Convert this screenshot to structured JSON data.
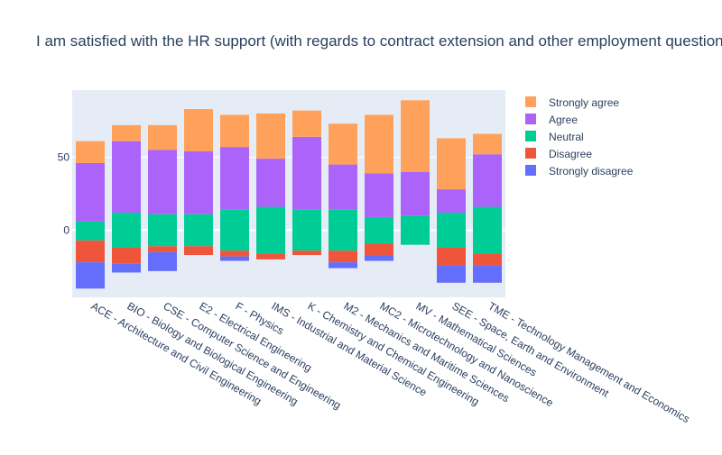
{
  "colors": {
    "plot_bg": "#E5ECF6",
    "grid": "#ffffff",
    "text": "#2a3f5f",
    "strongly_agree": "#FFA15A",
    "agree": "#AB63FA",
    "neutral": "#00CC96",
    "disagree": "#EF553B",
    "strongly_disagree": "#636EFA"
  },
  "chart_data": {
    "type": "bar",
    "title": "I am satisfied with the HR support (with regards to contract extension and other employment questions)",
    "xlabel": "",
    "ylabel": "",
    "barmode": "relative (diverging stacked)",
    "ylim": [
      -46,
      96
    ],
    "yticks": [
      0,
      50
    ],
    "legend_position": "top-right, outside plot",
    "categories": [
      "ACE - Architecture and Civil Engineering",
      "BIO - Biology and Biological Engineering",
      "CSE - Computer Science and Engineering",
      "E2 - Electrical Engineering",
      "F - Physics",
      "IMS - Industrial and Material Science",
      "K - Chemistry and Chemical Engineering",
      "M2 - Mechanics and Maritime Sciences",
      "MC2 - Microtechnology and Nanoscience",
      "MV - Mathematical Sciences",
      "SEE - Space, Earth and Environment",
      "TME - Technology Management and Economics"
    ],
    "series": [
      {
        "name": "Strongly agree",
        "key": "strongly_agree",
        "side": "positive",
        "values": [
          15,
          11,
          17,
          29,
          22,
          31,
          18,
          28,
          40,
          49,
          35,
          14
        ]
      },
      {
        "name": "Agree",
        "key": "agree",
        "side": "positive",
        "values": [
          40,
          49,
          44,
          43,
          43,
          33,
          50,
          31,
          30,
          30,
          16,
          36
        ]
      },
      {
        "name": "Neutral",
        "key": "neutral",
        "side": "positive",
        "values": [
          6,
          12,
          11,
          11,
          14,
          16,
          14,
          14,
          9,
          10,
          12,
          16
        ]
      },
      {
        "name": "Neutral",
        "key": "neutral",
        "side": "negative",
        "values": [
          -7,
          -12,
          -11,
          -11,
          -14,
          -16,
          -14,
          -14,
          -9,
          -10,
          -12,
          -16
        ]
      },
      {
        "name": "Disagree",
        "key": "disagree",
        "side": "negative",
        "values": [
          -15,
          -11,
          -4,
          -6,
          -4,
          -4,
          -3,
          -8,
          -8,
          0,
          -12,
          -8
        ]
      },
      {
        "name": "Strongly disagree",
        "key": "strongly_disagree",
        "side": "negative",
        "values": [
          -18,
          -6,
          -13,
          0,
          -3,
          0,
          0,
          -4,
          -4,
          0,
          -12,
          -12
        ]
      }
    ],
    "legend": [
      {
        "label": "Strongly agree",
        "key": "strongly_agree"
      },
      {
        "label": "Agree",
        "key": "agree"
      },
      {
        "label": "Neutral",
        "key": "neutral"
      },
      {
        "label": "Disagree",
        "key": "disagree"
      },
      {
        "label": "Strongly disagree",
        "key": "strongly_disagree"
      }
    ]
  }
}
